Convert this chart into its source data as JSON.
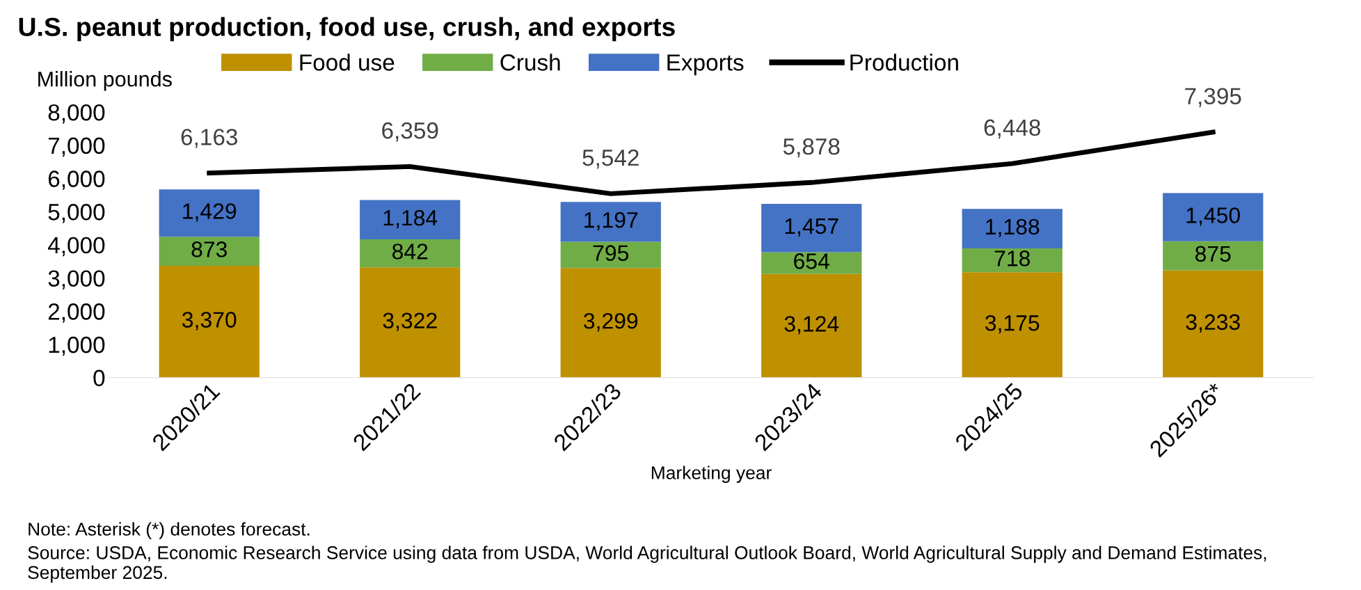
{
  "chart_data": {
    "type": "bar",
    "title": "U.S. peanut production, food use, crush, and exports",
    "ylabel": "Million pounds",
    "xlabel": "Marketing year",
    "categories": [
      "2020/21",
      "2021/22",
      "2022/23",
      "2023/24",
      "2024/25",
      "2025/26*"
    ],
    "stacked": true,
    "legend": "top",
    "grid": false,
    "ylim": [
      0,
      8000
    ],
    "yticks": [
      {
        "value": 0,
        "label": "0"
      },
      {
        "value": 1000,
        "label": "1,000"
      },
      {
        "value": 2000,
        "label": "2,000"
      },
      {
        "value": 3000,
        "label": "3,000"
      },
      {
        "value": 4000,
        "label": "4,000"
      },
      {
        "value": 5000,
        "label": "5,000"
      },
      {
        "value": 6000,
        "label": "6,000"
      },
      {
        "value": 7000,
        "label": "7,000"
      },
      {
        "value": 8000,
        "label": "8,000"
      }
    ],
    "series": [
      {
        "name": "Food use",
        "color": "#bf9000",
        "values": [
          3370,
          3322,
          3299,
          3124,
          3175,
          3233
        ],
        "value_labels": [
          "3,370",
          "3,322",
          "3,299",
          "3,124",
          "3,175",
          "3,233"
        ]
      },
      {
        "name": "Crush",
        "color": "#70ad47",
        "values": [
          873,
          842,
          795,
          654,
          718,
          875
        ],
        "value_labels": [
          "873",
          "842",
          "795",
          "654",
          "718",
          "875"
        ]
      },
      {
        "name": "Exports",
        "color": "#4472c4",
        "values": [
          1429,
          1184,
          1197,
          1457,
          1188,
          1450
        ],
        "value_labels": [
          "1,429",
          "1,184",
          "1,197",
          "1,457",
          "1,188",
          "1,450"
        ]
      },
      {
        "name": "Production",
        "type": "line",
        "color": "#000000",
        "marker": "none",
        "values": [
          6163,
          6359,
          5542,
          5878,
          6448,
          7395
        ],
        "value_labels": [
          "6,163",
          "6,359",
          "5,542",
          "5,878",
          "6,448",
          "7,395"
        ]
      }
    ],
    "annotations": [
      "Note: Asterisk (*) denotes forecast.",
      "Source: USDA, Economic Research Service using data from USDA, World Agricultural Outlook Board, World Agricultural Supply and Demand Estimates, September 2025."
    ]
  }
}
